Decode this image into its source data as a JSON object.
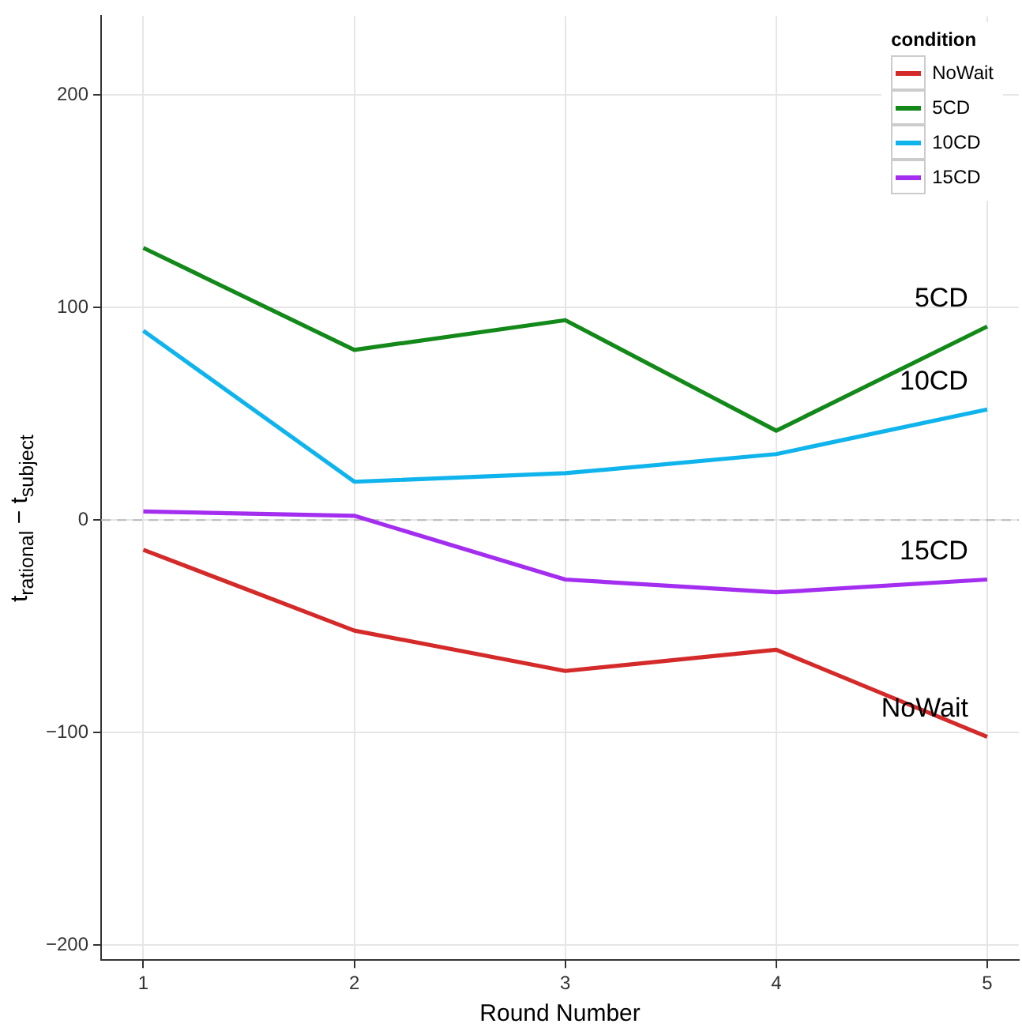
{
  "chart_data": {
    "type": "line",
    "xlabel": "Round Number",
    "ylabel": "t$_{rational}$ − t$_{subject}$",
    "legend_title": "condition",
    "x": [
      1,
      2,
      3,
      4,
      5
    ],
    "series": [
      {
        "name": "NoWait",
        "color": "#d42a2a",
        "values": [
          -14,
          -52,
          -71,
          -61,
          -102
        ]
      },
      {
        "name": "5CD",
        "color": "#13891a",
        "values": [
          128,
          80,
          94,
          42,
          91
        ]
      },
      {
        "name": "10CD",
        "color": "#10b4ec",
        "values": [
          89,
          18,
          22,
          31,
          52
        ]
      },
      {
        "name": "15CD",
        "color": "#a32ef0",
        "values": [
          4,
          2,
          -28,
          -34,
          -28
        ]
      }
    ],
    "xlim": [
      0.8,
      5.15
    ],
    "xticks": [
      1,
      2,
      3,
      4,
      5
    ],
    "ylim": [
      -207,
      237
    ],
    "yticks": [
      -200,
      -100,
      0,
      100,
      200
    ],
    "ref_lines": [
      {
        "axis": "y",
        "value": 0,
        "color": "#bbbbbb",
        "line_style": "dashed"
      }
    ],
    "grid": true,
    "legend": "top right",
    "marker": "none",
    "line_style": "solid"
  }
}
